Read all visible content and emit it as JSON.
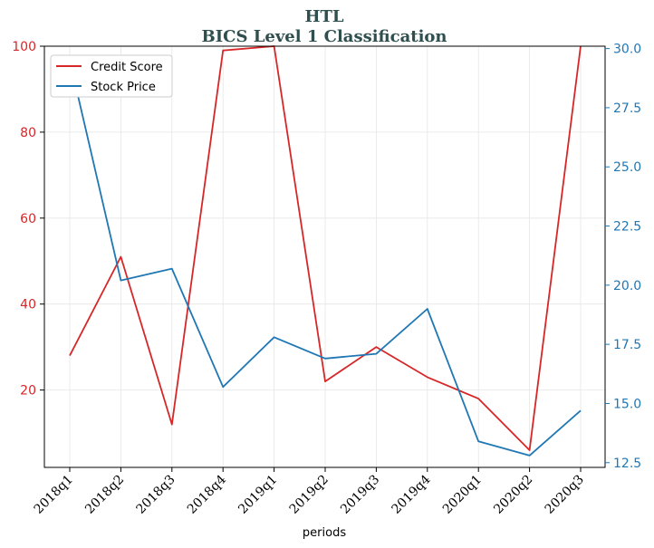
{
  "chart_data": {
    "type": "line",
    "title": "HTL",
    "subtitle": "BICS Level 1 Classification",
    "xlabel": "periods",
    "categories": [
      "2018q1",
      "2018q2",
      "2018q3",
      "2018q4",
      "2019q1",
      "2019q2",
      "2019q3",
      "2019q4",
      "2020q1",
      "2020q2",
      "2020q3"
    ],
    "left_axis": {
      "ylim": [
        2,
        100
      ],
      "ticks": [
        20,
        40,
        60,
        80,
        100
      ],
      "color": "#d62728"
    },
    "right_axis": {
      "ylim": [
        12.3,
        30.1
      ],
      "ticks": [
        "12.5",
        "15.0",
        "17.5",
        "20.0",
        "22.5",
        "25.0",
        "27.5",
        "30.0"
      ],
      "color": "#1f77b4"
    },
    "series": [
      {
        "name": "Credit Score",
        "axis": "left",
        "color": "#d62728",
        "values": [
          28,
          51,
          12,
          99,
          100,
          22,
          30,
          23,
          18,
          6,
          100
        ]
      },
      {
        "name": "Stock Price",
        "axis": "right",
        "color": "#1f77b4",
        "values": [
          29.5,
          20.2,
          20.7,
          15.7,
          17.8,
          16.9,
          17.1,
          19.0,
          13.4,
          12.8,
          14.7
        ]
      }
    ],
    "legend_position": "upper-left",
    "grid": true
  }
}
